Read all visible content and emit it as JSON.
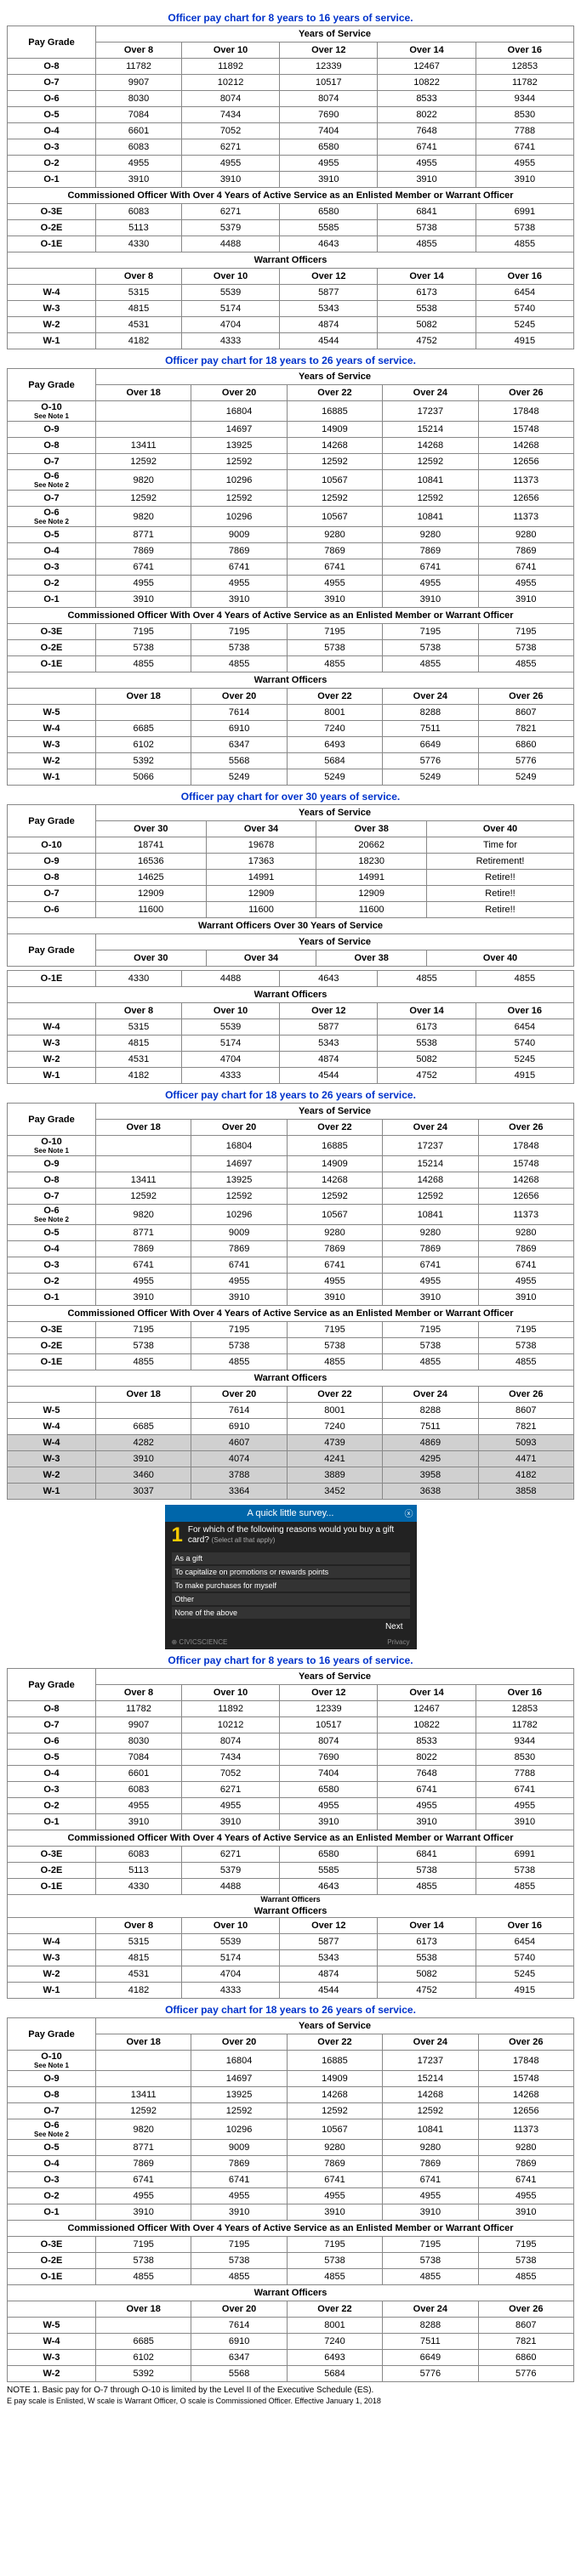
{
  "titles": {
    "t8_16": "Officer pay chart for 8 years to 16 years of service.",
    "t18_26": "Officer pay chart for 18 years to 26 years of service.",
    "t30": "Officer pay chart for over 30 years of service."
  },
  "labels": {
    "pay_grade": "Pay Grade",
    "years_of_service": "Years of Service",
    "commissioned": "Commissioned Officer With Over 4 Years of Active Service as an Enlisted Member or Warrant Officer",
    "warrant": "Warrant Officers",
    "warrant30": "Warrant Officers Over 30 Years of Service",
    "see_note1": "See Note 1",
    "see_note2": "See Note 2",
    "time_for": "Time for",
    "retirement": "Retirement!",
    "retire": "Retire!!"
  },
  "cols_8_16": [
    "Over 8",
    "Over 10",
    "Over 12",
    "Over 14",
    "Over 16"
  ],
  "cols_18_26": [
    "Over 18",
    "Over 20",
    "Over 22",
    "Over 24",
    "Over 26"
  ],
  "cols_30": [
    "Over 30",
    "Over 34",
    "Over 38",
    "Over 40"
  ],
  "table1": {
    "rows": [
      {
        "g": "O-8",
        "v": [
          "11782",
          "11892",
          "12339",
          "12467",
          "12853"
        ]
      },
      {
        "g": "O-7",
        "v": [
          "9907",
          "10212",
          "10517",
          "10822",
          "11782"
        ]
      },
      {
        "g": "O-6",
        "v": [
          "8030",
          "8074",
          "8074",
          "8533",
          "9344"
        ]
      },
      {
        "g": "O-5",
        "v": [
          "7084",
          "7434",
          "7690",
          "8022",
          "8530"
        ]
      },
      {
        "g": "O-4",
        "v": [
          "6601",
          "7052",
          "7404",
          "7648",
          "7788"
        ]
      },
      {
        "g": "O-3",
        "v": [
          "6083",
          "6271",
          "6580",
          "6741",
          "6741"
        ]
      },
      {
        "g": "O-2",
        "v": [
          "4955",
          "4955",
          "4955",
          "4955",
          "4955"
        ]
      },
      {
        "g": "O-1",
        "v": [
          "3910",
          "3910",
          "3910",
          "3910",
          "3910"
        ]
      }
    ],
    "comm": [
      {
        "g": "O-3E",
        "v": [
          "6083",
          "6271",
          "6580",
          "6841",
          "6991"
        ]
      },
      {
        "g": "O-2E",
        "v": [
          "5113",
          "5379",
          "5585",
          "5738",
          "5738"
        ]
      },
      {
        "g": "O-1E",
        "v": [
          "4330",
          "4488",
          "4643",
          "4855",
          "4855"
        ]
      }
    ],
    "warr": [
      {
        "g": "W-4",
        "v": [
          "5315",
          "5539",
          "5877",
          "6173",
          "6454"
        ]
      },
      {
        "g": "W-3",
        "v": [
          "4815",
          "5174",
          "5343",
          "5538",
          "5740"
        ]
      },
      {
        "g": "W-2",
        "v": [
          "4531",
          "4704",
          "4874",
          "5082",
          "5245"
        ]
      },
      {
        "g": "W-1",
        "v": [
          "4182",
          "4333",
          "4544",
          "4752",
          "4915"
        ]
      }
    ]
  },
  "table2": {
    "rows": [
      {
        "g": "O-10",
        "note": "See Note 1",
        "v": [
          "",
          "16804",
          "16885",
          "17237",
          "17848"
        ]
      },
      {
        "g": "O-9",
        "v": [
          "",
          "14697",
          "14909",
          "15214",
          "15748"
        ]
      },
      {
        "g": "O-8",
        "v": [
          "13411",
          "13925",
          "14268",
          "14268",
          "14268"
        ]
      },
      {
        "g": "O-7",
        "v": [
          "12592",
          "12592",
          "12592",
          "12592",
          "12656"
        ]
      },
      {
        "g": "O-6",
        "note": "See Note 2",
        "v": [
          "9820",
          "10296",
          "10567",
          "10841",
          "11373"
        ]
      },
      {
        "g": "O-7",
        "v": [
          "12592",
          "12592",
          "12592",
          "12592",
          "12656"
        ]
      },
      {
        "g": "O-6",
        "note": "See Note 2",
        "v": [
          "9820",
          "10296",
          "10567",
          "10841",
          "11373"
        ]
      },
      {
        "g": "O-5",
        "v": [
          "8771",
          "9009",
          "9280",
          "9280",
          "9280"
        ]
      },
      {
        "g": "O-4",
        "v": [
          "7869",
          "7869",
          "7869",
          "7869",
          "7869"
        ]
      },
      {
        "g": "O-3",
        "v": [
          "6741",
          "6741",
          "6741",
          "6741",
          "6741"
        ]
      },
      {
        "g": "O-2",
        "v": [
          "4955",
          "4955",
          "4955",
          "4955",
          "4955"
        ]
      },
      {
        "g": "O-1",
        "v": [
          "3910",
          "3910",
          "3910",
          "3910",
          "3910"
        ]
      }
    ],
    "comm": [
      {
        "g": "O-3E",
        "v": [
          "7195",
          "7195",
          "7195",
          "7195",
          "7195"
        ]
      },
      {
        "g": "O-2E",
        "v": [
          "5738",
          "5738",
          "5738",
          "5738",
          "5738"
        ]
      },
      {
        "g": "O-1E",
        "v": [
          "4855",
          "4855",
          "4855",
          "4855",
          "4855"
        ]
      }
    ],
    "warr": [
      {
        "g": "W-5",
        "v": [
          "",
          "7614",
          "8001",
          "8288",
          "8607"
        ]
      },
      {
        "g": "W-4",
        "v": [
          "6685",
          "6910",
          "7240",
          "7511",
          "7821"
        ]
      },
      {
        "g": "W-3",
        "v": [
          "6102",
          "6347",
          "6493",
          "6649",
          "6860"
        ]
      },
      {
        "g": "W-2",
        "v": [
          "5392",
          "5568",
          "5684",
          "5776",
          "5776"
        ]
      },
      {
        "g": "W-1",
        "v": [
          "5066",
          "5249",
          "5249",
          "5249",
          "5249"
        ]
      }
    ]
  },
  "table3": {
    "rows": [
      {
        "g": "O-10",
        "v": [
          "18741",
          "19678",
          "20662",
          "time"
        ]
      },
      {
        "g": "O-9",
        "v": [
          "16536",
          "17363",
          "18230",
          "retirement"
        ]
      },
      {
        "g": "O-8",
        "v": [
          "14625",
          "14991",
          "14991",
          "retire"
        ]
      },
      {
        "g": "O-7",
        "v": [
          "12909",
          "12909",
          "12909",
          "retire"
        ]
      },
      {
        "g": "O-6",
        "v": [
          "11600",
          "11600",
          "11600",
          "retire"
        ]
      }
    ],
    "warr_partial": {
      "g": "O-1E",
      "v": [
        "4330",
        "4488",
        "4643",
        "4855",
        "4855"
      ]
    },
    "warr": [
      {
        "g": "W-4",
        "v": [
          "5315",
          "5539",
          "5877",
          "6173",
          "6454"
        ]
      },
      {
        "g": "W-3",
        "v": [
          "4815",
          "5174",
          "5343",
          "5538",
          "5740"
        ]
      },
      {
        "g": "W-2",
        "v": [
          "4531",
          "4704",
          "4874",
          "5082",
          "5245"
        ]
      },
      {
        "g": "W-1",
        "v": [
          "4182",
          "4333",
          "4544",
          "4752",
          "4915"
        ]
      }
    ]
  },
  "table4": {
    "rows": [
      {
        "g": "O-10",
        "note": "See Note 1",
        "v": [
          "",
          "16804",
          "16885",
          "17237",
          "17848"
        ]
      },
      {
        "g": "O-9",
        "v": [
          "",
          "14697",
          "14909",
          "15214",
          "15748"
        ]
      },
      {
        "g": "O-8",
        "v": [
          "13411",
          "13925",
          "14268",
          "14268",
          "14268"
        ]
      },
      {
        "g": "O-7",
        "v": [
          "12592",
          "12592",
          "12592",
          "12592",
          "12656"
        ]
      },
      {
        "g": "O-6",
        "note": "See Note 2",
        "v": [
          "9820",
          "10296",
          "10567",
          "10841",
          "11373"
        ]
      },
      {
        "g": "O-5",
        "v": [
          "8771",
          "9009",
          "9280",
          "9280",
          "9280"
        ]
      },
      {
        "g": "O-4",
        "v": [
          "7869",
          "7869",
          "7869",
          "7869",
          "7869"
        ]
      },
      {
        "g": "O-3",
        "v": [
          "6741",
          "6741",
          "6741",
          "6741",
          "6741"
        ]
      },
      {
        "g": "O-2",
        "v": [
          "4955",
          "4955",
          "4955",
          "4955",
          "4955"
        ]
      },
      {
        "g": "O-1",
        "v": [
          "3910",
          "3910",
          "3910",
          "3910",
          "3910"
        ]
      }
    ],
    "comm": [
      {
        "g": "O-3E",
        "v": [
          "7195",
          "7195",
          "7195",
          "7195",
          "7195"
        ]
      },
      {
        "g": "O-2E",
        "v": [
          "5738",
          "5738",
          "5738",
          "5738",
          "5738"
        ]
      },
      {
        "g": "O-1E",
        "v": [
          "4855",
          "4855",
          "4855",
          "4855",
          "4855"
        ]
      }
    ],
    "warr": [
      {
        "g": "W-5",
        "v": [
          "",
          "7614",
          "8001",
          "8288",
          "8607"
        ]
      },
      {
        "g": "W-4",
        "v": [
          "6685",
          "6910",
          "7240",
          "7511",
          "7821"
        ]
      }
    ],
    "shaded": [
      {
        "g": "W-4",
        "v": [
          "4282",
          "4607",
          "4739",
          "4869",
          "5093"
        ]
      },
      {
        "g": "W-3",
        "v": [
          "3910",
          "4074",
          "4241",
          "4295",
          "4471"
        ]
      },
      {
        "g": "W-2",
        "v": [
          "3460",
          "3788",
          "3889",
          "3958",
          "4182"
        ]
      },
      {
        "g": "W-1",
        "v": [
          "3037",
          "3364",
          "3452",
          "3638",
          "3858"
        ]
      }
    ]
  },
  "survey": {
    "title": "A quick little survey...",
    "num": "1",
    "q": "For which of the following reasons would you buy a gift card?",
    "sub": "(Select all that apply)",
    "opts": [
      "As a gift",
      "To capitalize on promotions or rewards points",
      "To make purchases for myself",
      "Other",
      "None of the above"
    ],
    "next": "Next",
    "brand": "⊕ CIVICSCIENCE",
    "privacy": "Privacy"
  },
  "table5": {
    "rows": [
      {
        "g": "O-8",
        "v": [
          "11782",
          "11892",
          "12339",
          "12467",
          "12853"
        ]
      },
      {
        "g": "O-7",
        "v": [
          "9907",
          "10212",
          "10517",
          "10822",
          "11782"
        ]
      },
      {
        "g": "O-6",
        "v": [
          "8030",
          "8074",
          "8074",
          "8533",
          "9344"
        ]
      },
      {
        "g": "O-5",
        "v": [
          "7084",
          "7434",
          "7690",
          "8022",
          "8530"
        ]
      },
      {
        "g": "O-4",
        "v": [
          "6601",
          "7052",
          "7404",
          "7648",
          "7788"
        ]
      },
      {
        "g": "O-3",
        "v": [
          "6083",
          "6271",
          "6580",
          "6741",
          "6741"
        ]
      },
      {
        "g": "O-2",
        "v": [
          "4955",
          "4955",
          "4955",
          "4955",
          "4955"
        ]
      },
      {
        "g": "O-1",
        "v": [
          "3910",
          "3910",
          "3910",
          "3910",
          "3910"
        ]
      }
    ],
    "comm": [
      {
        "g": "O-3E",
        "v": [
          "6083",
          "6271",
          "6580",
          "6841",
          "6991"
        ]
      },
      {
        "g": "O-2E",
        "v": [
          "5113",
          "5379",
          "5585",
          "5738",
          "5738"
        ]
      },
      {
        "g": "O-1E",
        "v": [
          "4330",
          "4488",
          "4643",
          "4855",
          "4855"
        ]
      }
    ],
    "warr": [
      {
        "g": "W-4",
        "v": [
          "5315",
          "5539",
          "5877",
          "6173",
          "6454"
        ]
      },
      {
        "g": "W-3",
        "v": [
          "4815",
          "5174",
          "5343",
          "5538",
          "5740"
        ]
      },
      {
        "g": "W-2",
        "v": [
          "4531",
          "4704",
          "4874",
          "5082",
          "5245"
        ]
      },
      {
        "g": "W-1",
        "v": [
          "4182",
          "4333",
          "4544",
          "4752",
          "4915"
        ]
      }
    ]
  },
  "table6": {
    "rows": [
      {
        "g": "O-10",
        "note": "See Note 1",
        "v": [
          "",
          "16804",
          "16885",
          "17237",
          "17848"
        ]
      },
      {
        "g": "O-9",
        "v": [
          "",
          "14697",
          "14909",
          "15214",
          "15748"
        ]
      },
      {
        "g": "O-8",
        "v": [
          "13411",
          "13925",
          "14268",
          "14268",
          "14268"
        ]
      },
      {
        "g": "O-7",
        "v": [
          "12592",
          "12592",
          "12592",
          "12592",
          "12656"
        ]
      },
      {
        "g": "O-6",
        "note": "See Note 2",
        "v": [
          "9820",
          "10296",
          "10567",
          "10841",
          "11373"
        ]
      },
      {
        "g": "O-5",
        "v": [
          "8771",
          "9009",
          "9280",
          "9280",
          "9280"
        ]
      },
      {
        "g": "O-4",
        "v": [
          "7869",
          "7869",
          "7869",
          "7869",
          "7869"
        ]
      },
      {
        "g": "O-3",
        "v": [
          "6741",
          "6741",
          "6741",
          "6741",
          "6741"
        ]
      },
      {
        "g": "O-2",
        "v": [
          "4955",
          "4955",
          "4955",
          "4955",
          "4955"
        ]
      },
      {
        "g": "O-1",
        "v": [
          "3910",
          "3910",
          "3910",
          "3910",
          "3910"
        ]
      }
    ],
    "comm": [
      {
        "g": "O-3E",
        "v": [
          "7195",
          "7195",
          "7195",
          "7195",
          "7195"
        ]
      },
      {
        "g": "O-2E",
        "v": [
          "5738",
          "5738",
          "5738",
          "5738",
          "5738"
        ]
      },
      {
        "g": "O-1E",
        "v": [
          "4855",
          "4855",
          "4855",
          "4855",
          "4855"
        ]
      }
    ],
    "warr": [
      {
        "g": "W-5",
        "v": [
          "",
          "7614",
          "8001",
          "8288",
          "8607"
        ]
      },
      {
        "g": "W-4",
        "v": [
          "6685",
          "6910",
          "7240",
          "7511",
          "7821"
        ]
      },
      {
        "g": "W-3",
        "v": [
          "6102",
          "6347",
          "6493",
          "6649",
          "6860"
        ]
      },
      {
        "g": "W-2",
        "v": [
          "5392",
          "5568",
          "5684",
          "5776",
          "5776"
        ]
      }
    ]
  },
  "notes": {
    "n1": "NOTE 1. Basic pay for O-7 through O-10 is limited by the Level II of the Executive Schedule (ES).",
    "n2": "E pay scale is Enlisted, W scale is Warrant Officer, O scale is Commissioned Officer. Effective January 1, 2018"
  },
  "warrant_overlay": "Warrant Officers"
}
